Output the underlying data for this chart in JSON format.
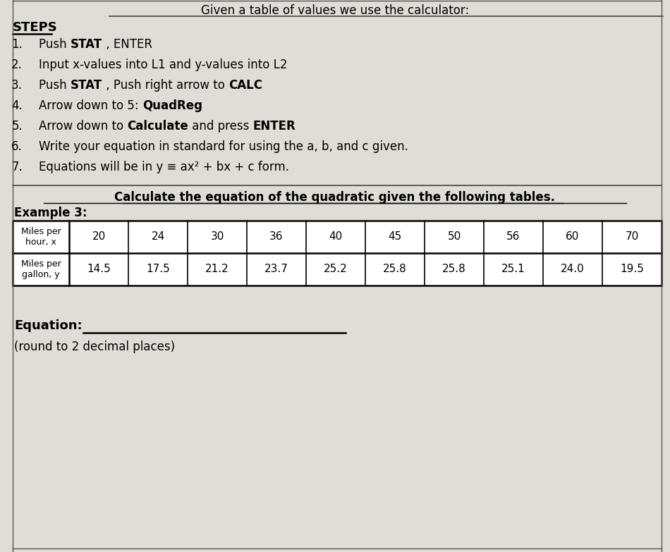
{
  "header": "Given a table of values we use the calculator:",
  "steps_title": "STEPS",
  "step_texts": [
    [
      [
        "Push ",
        false
      ],
      [
        "STAT",
        true
      ],
      [
        " , ENTER",
        false
      ]
    ],
    [
      [
        "Input x-values into L1 and y-values into L2",
        false
      ]
    ],
    [
      [
        "Push ",
        false
      ],
      [
        "STAT",
        true
      ],
      [
        " , Push right arrow to ",
        false
      ],
      [
        "CALC",
        true
      ]
    ],
    [
      [
        "Arrow down to 5: ",
        false
      ],
      [
        "QuadReg",
        true
      ]
    ],
    [
      [
        "Arrow down to ",
        false
      ],
      [
        "Calculate",
        true
      ],
      [
        " and press ",
        false
      ],
      [
        "ENTER",
        true
      ]
    ],
    [
      [
        "Write your equation in standard for using the a, b, and c given.",
        false
      ]
    ],
    [
      [
        "Equations will be in y ≡ ax² + bx + c form.",
        false
      ]
    ]
  ],
  "section_title": "Calculate the equation of the quadratic given the following tables.",
  "example_label": "Example 3:",
  "col1_header_line1": "Miles per",
  "col1_header_line2": "hour, x",
  "col2_header_line1": "Miles per",
  "col2_header_line2": "gallon, y",
  "x_values": [
    20,
    24,
    30,
    36,
    40,
    45,
    50,
    56,
    60,
    70
  ],
  "y_values": [
    14.5,
    17.5,
    21.2,
    23.7,
    25.2,
    25.8,
    25.8,
    25.1,
    24.0,
    19.5
  ],
  "equation_label": "Equation:",
  "round_note": "(round to 2 decimal places)",
  "bg_color": "#e0ddd6",
  "text_color": "#000000",
  "table_bg": "#ffffff"
}
